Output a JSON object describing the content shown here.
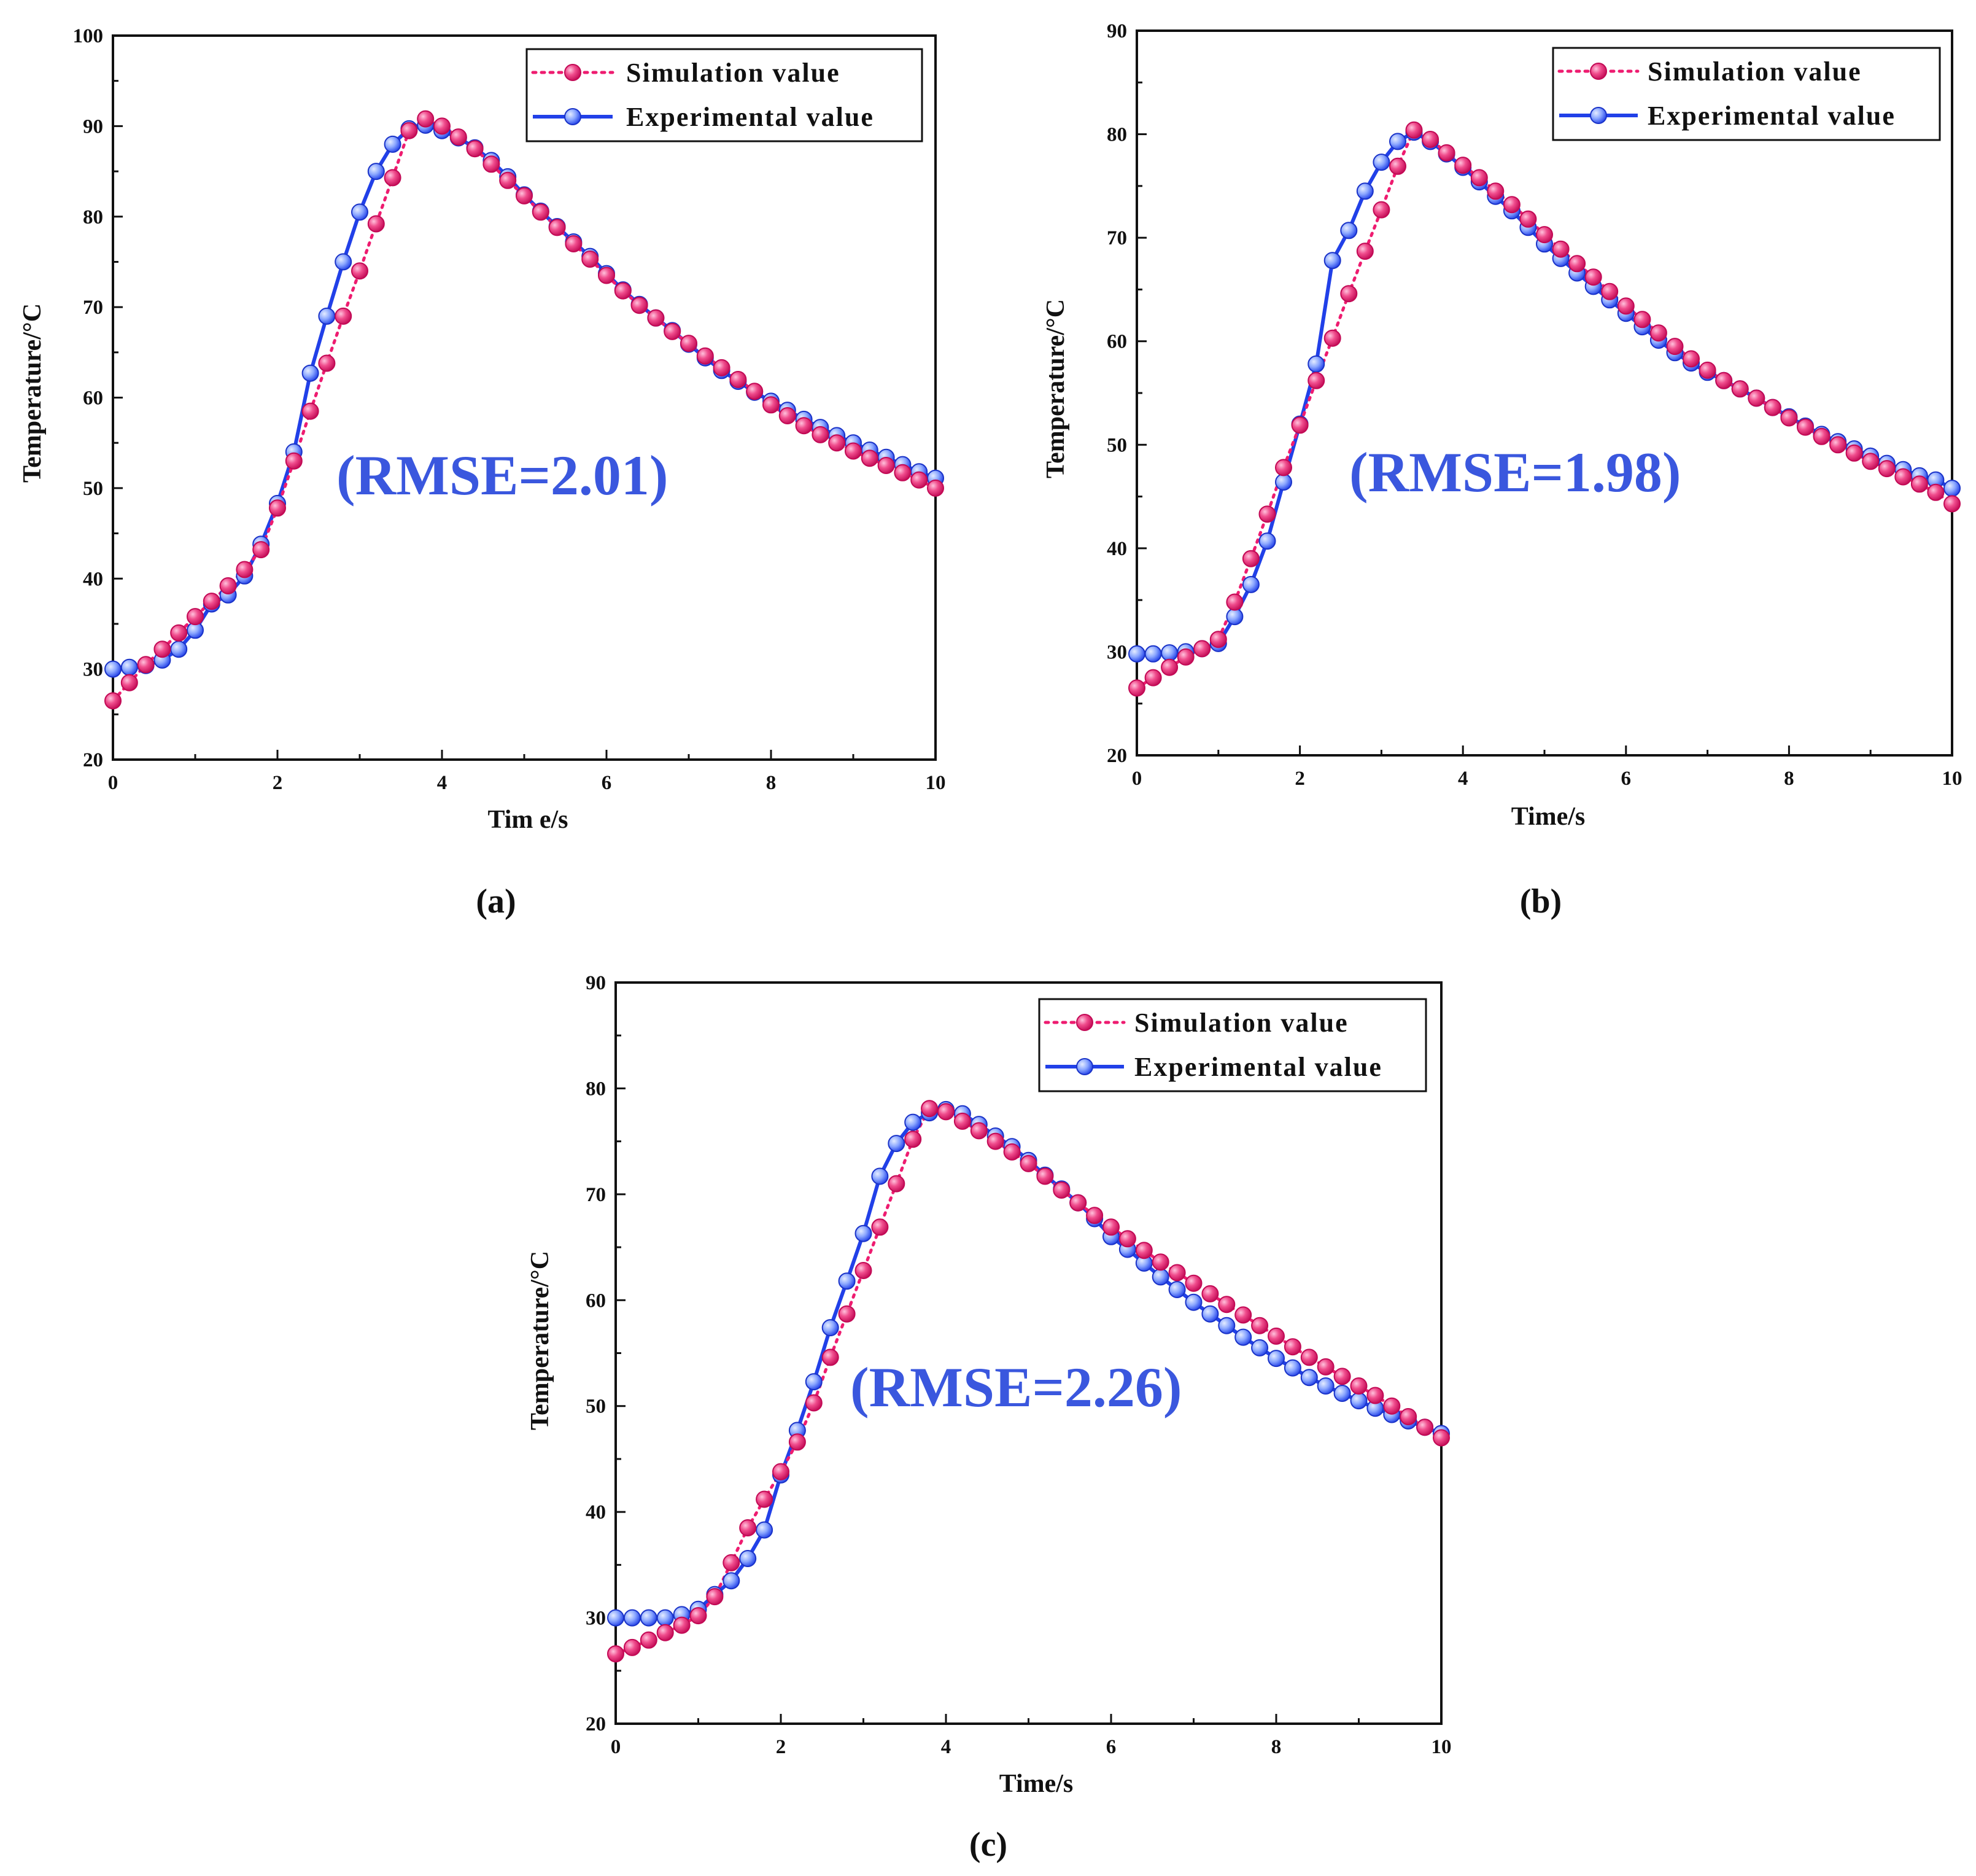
{
  "figure": {
    "colors": {
      "simulation": "#ee1c70",
      "experimental": "#2140e8",
      "annotation": "#3a57de",
      "axis": "#111111"
    }
  },
  "chart_data": [
    {
      "type": "line",
      "id": "a",
      "caption": "(a)",
      "annotation": "(RMSE=2.01)",
      "xlabel": "Tim e/s",
      "ylabel": "Temperature/°C",
      "xlim": [
        0,
        10
      ],
      "ylim": [
        20,
        100
      ],
      "xticks": [
        0,
        2,
        4,
        6,
        8,
        10
      ],
      "yticks": [
        20,
        30,
        40,
        50,
        60,
        70,
        80,
        90,
        100
      ],
      "legend_position": "top-right",
      "series": [
        {
          "name": "Simulation value",
          "style": "dotted",
          "x": [
            0,
            0.2,
            0.4,
            0.6,
            0.8,
            1.0,
            1.2,
            1.4,
            1.6,
            1.8,
            2.0,
            2.2,
            2.4,
            2.6,
            2.8,
            3.0,
            3.2,
            3.4,
            3.6,
            3.8,
            4.0,
            4.2,
            4.4,
            4.6,
            4.8,
            5.0,
            5.2,
            5.4,
            5.6,
            5.8,
            6.0,
            6.2,
            6.4,
            6.6,
            6.8,
            7.0,
            7.2,
            7.4,
            7.6,
            7.8,
            8.0,
            8.2,
            8.4,
            8.6,
            8.8,
            9.0,
            9.2,
            9.4,
            9.6,
            9.8,
            10.0
          ],
          "y": [
            26.5,
            28.5,
            30.5,
            32.2,
            34.0,
            35.8,
            37.5,
            39.2,
            41.0,
            43.2,
            47.8,
            53.0,
            58.5,
            63.8,
            69.0,
            74.0,
            79.2,
            84.3,
            89.5,
            90.8,
            90.0,
            88.8,
            87.5,
            85.8,
            84.0,
            82.3,
            80.5,
            78.8,
            77.0,
            75.3,
            73.5,
            71.8,
            70.2,
            68.8,
            67.3,
            66.0,
            64.6,
            63.3,
            62.0,
            60.7,
            59.2,
            58.0,
            56.9,
            55.9,
            55.0,
            54.1,
            53.3,
            52.5,
            51.7,
            50.9,
            50.0
          ]
        },
        {
          "name": "Experimental value",
          "style": "solid",
          "x": [
            0,
            0.2,
            0.4,
            0.6,
            0.8,
            1.0,
            1.2,
            1.4,
            1.6,
            1.8,
            2.0,
            2.2,
            2.4,
            2.6,
            2.8,
            3.0,
            3.2,
            3.4,
            3.6,
            3.8,
            4.0,
            4.2,
            4.4,
            4.6,
            4.8,
            5.0,
            5.2,
            5.4,
            5.6,
            5.8,
            6.0,
            6.2,
            6.4,
            6.6,
            6.8,
            7.0,
            7.2,
            7.4,
            7.6,
            7.8,
            8.0,
            8.2,
            8.4,
            8.6,
            8.8,
            9.0,
            9.2,
            9.4,
            9.6,
            9.8,
            10.0
          ],
          "y": [
            30.0,
            30.2,
            30.4,
            31.0,
            32.2,
            34.3,
            37.2,
            38.2,
            40.3,
            43.8,
            48.3,
            54.0,
            62.7,
            69.0,
            75.0,
            80.5,
            85.0,
            88.0,
            89.7,
            90.1,
            89.5,
            88.7,
            87.6,
            86.2,
            84.4,
            82.4,
            80.6,
            78.9,
            77.2,
            75.6,
            73.7,
            71.9,
            70.3,
            68.8,
            67.4,
            65.9,
            64.4,
            63.0,
            61.8,
            60.6,
            59.6,
            58.6,
            57.6,
            56.7,
            55.8,
            55.0,
            54.2,
            53.4,
            52.6,
            51.8,
            51.1
          ]
        }
      ]
    },
    {
      "type": "line",
      "id": "b",
      "caption": "(b)",
      "annotation": "(RMSE=1.98)",
      "xlabel": "Time/s",
      "ylabel": "Temperature/°C",
      "xlim": [
        0,
        10
      ],
      "ylim": [
        20,
        90
      ],
      "xticks": [
        0,
        2,
        4,
        6,
        8,
        10
      ],
      "yticks": [
        20,
        30,
        40,
        50,
        60,
        70,
        80,
        90
      ],
      "legend_position": "top-right",
      "series": [
        {
          "name": "Simulation value",
          "style": "dotted",
          "x": [
            0,
            0.2,
            0.4,
            0.6,
            0.8,
            1.0,
            1.2,
            1.4,
            1.6,
            1.8,
            2.0,
            2.2,
            2.4,
            2.6,
            2.8,
            3.0,
            3.2,
            3.4,
            3.6,
            3.8,
            4.0,
            4.2,
            4.4,
            4.6,
            4.8,
            5.0,
            5.2,
            5.4,
            5.6,
            5.8,
            6.0,
            6.2,
            6.4,
            6.6,
            6.8,
            7.0,
            7.2,
            7.4,
            7.6,
            7.8,
            8.0,
            8.2,
            8.4,
            8.6,
            8.8,
            9.0,
            9.2,
            9.4,
            9.6,
            9.8,
            10.0
          ],
          "y": [
            26.5,
            27.5,
            28.5,
            29.5,
            30.3,
            31.2,
            34.8,
            39.0,
            43.3,
            47.8,
            51.9,
            56.2,
            60.3,
            64.6,
            68.7,
            72.7,
            76.9,
            80.4,
            79.5,
            78.2,
            77.0,
            75.8,
            74.5,
            73.2,
            71.8,
            70.3,
            68.9,
            67.5,
            66.2,
            64.8,
            63.4,
            62.1,
            60.8,
            59.5,
            58.3,
            57.2,
            56.2,
            55.4,
            54.5,
            53.6,
            52.6,
            51.7,
            50.8,
            50.0,
            49.2,
            48.4,
            47.7,
            46.9,
            46.2,
            45.4,
            44.3
          ]
        },
        {
          "name": "Experimental value",
          "style": "solid",
          "x": [
            0,
            0.2,
            0.4,
            0.6,
            0.8,
            1.0,
            1.2,
            1.4,
            1.6,
            1.8,
            2.0,
            2.2,
            2.4,
            2.6,
            2.8,
            3.0,
            3.2,
            3.4,
            3.6,
            3.8,
            4.0,
            4.2,
            4.4,
            4.6,
            4.8,
            5.0,
            5.2,
            5.4,
            5.6,
            5.8,
            6.0,
            6.2,
            6.4,
            6.6,
            6.8,
            7.0,
            7.2,
            7.4,
            7.6,
            7.8,
            8.0,
            8.2,
            8.4,
            8.6,
            8.8,
            9.0,
            9.2,
            9.4,
            9.6,
            9.8,
            10.0
          ],
          "y": [
            29.8,
            29.8,
            29.9,
            30.0,
            30.3,
            30.8,
            33.4,
            36.5,
            40.7,
            46.4,
            52.0,
            57.8,
            67.8,
            70.7,
            74.5,
            77.3,
            79.3,
            80.2,
            79.3,
            78.1,
            76.8,
            75.4,
            74.0,
            72.6,
            71.0,
            69.4,
            68.0,
            66.6,
            65.3,
            64.0,
            62.7,
            61.4,
            60.1,
            58.9,
            57.9,
            57.0,
            56.2,
            55.4,
            54.5,
            53.6,
            52.7,
            51.8,
            51.0,
            50.3,
            49.6,
            48.9,
            48.2,
            47.6,
            47.0,
            46.6,
            45.8
          ]
        }
      ]
    },
    {
      "type": "line",
      "id": "c",
      "caption": "(c)",
      "annotation": "(RMSE=2.26)",
      "xlabel": "Time/s",
      "ylabel": "Temperature/°C",
      "xlim": [
        0,
        10
      ],
      "ylim": [
        20,
        90
      ],
      "xticks": [
        0,
        2,
        4,
        6,
        8,
        10
      ],
      "yticks": [
        20,
        30,
        40,
        50,
        60,
        70,
        80,
        90
      ],
      "legend_position": "top-right",
      "series": [
        {
          "name": "Simulation value",
          "style": "dotted",
          "x": [
            0,
            0.2,
            0.4,
            0.6,
            0.8,
            1.0,
            1.2,
            1.4,
            1.6,
            1.8,
            2.0,
            2.2,
            2.4,
            2.6,
            2.8,
            3.0,
            3.2,
            3.4,
            3.6,
            3.8,
            4.0,
            4.2,
            4.4,
            4.6,
            4.8,
            5.0,
            5.2,
            5.4,
            5.6,
            5.8,
            6.0,
            6.2,
            6.4,
            6.6,
            6.8,
            7.0,
            7.2,
            7.4,
            7.6,
            7.8,
            8.0,
            8.2,
            8.4,
            8.6,
            8.8,
            9.0,
            9.2,
            9.4,
            9.6,
            9.8,
            10.0
          ],
          "y": [
            26.6,
            27.2,
            27.9,
            28.6,
            29.3,
            30.2,
            32.0,
            35.2,
            38.5,
            41.2,
            43.8,
            46.6,
            50.3,
            54.6,
            58.7,
            62.8,
            66.9,
            71.0,
            75.2,
            78.1,
            77.8,
            76.9,
            76.0,
            75.0,
            74.0,
            72.9,
            71.7,
            70.4,
            69.2,
            68.0,
            66.9,
            65.8,
            64.7,
            63.6,
            62.6,
            61.6,
            60.6,
            59.6,
            58.6,
            57.6,
            56.6,
            55.6,
            54.6,
            53.7,
            52.8,
            51.9,
            51.0,
            50.0,
            49.0,
            48.0,
            47.0
          ]
        },
        {
          "name": "Experimental value",
          "style": "solid",
          "x": [
            0,
            0.2,
            0.4,
            0.6,
            0.8,
            1.0,
            1.2,
            1.4,
            1.6,
            1.8,
            2.0,
            2.2,
            2.4,
            2.6,
            2.8,
            3.0,
            3.2,
            3.4,
            3.6,
            3.8,
            4.0,
            4.2,
            4.4,
            4.6,
            4.8,
            5.0,
            5.2,
            5.4,
            5.6,
            5.8,
            6.0,
            6.2,
            6.4,
            6.6,
            6.8,
            7.0,
            7.2,
            7.4,
            7.6,
            7.8,
            8.0,
            8.2,
            8.4,
            8.6,
            8.8,
            9.0,
            9.2,
            9.4,
            9.6,
            9.8,
            10.0
          ],
          "y": [
            30.0,
            30.0,
            30.0,
            30.0,
            30.3,
            30.8,
            32.2,
            33.5,
            35.6,
            38.3,
            43.5,
            47.7,
            52.3,
            57.4,
            61.8,
            66.3,
            71.7,
            74.8,
            76.8,
            77.7,
            78.0,
            77.6,
            76.6,
            75.5,
            74.5,
            73.2,
            71.8,
            70.5,
            69.2,
            67.7,
            66.0,
            64.8,
            63.5,
            62.2,
            61.0,
            59.8,
            58.7,
            57.6,
            56.5,
            55.5,
            54.5,
            53.6,
            52.7,
            51.9,
            51.2,
            50.5,
            49.8,
            49.2,
            48.6,
            48.0,
            47.4
          ]
        }
      ]
    }
  ]
}
